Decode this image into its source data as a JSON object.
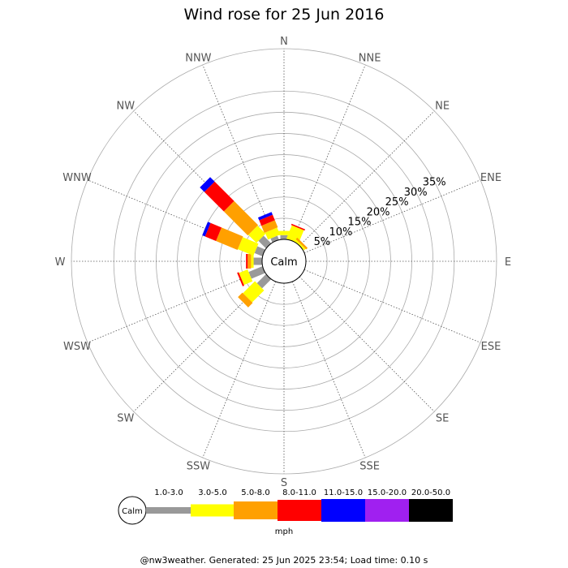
{
  "chart_data": {
    "type": "windrose",
    "title": "Wind rose for 25 Jun 2016",
    "calm_label": "Calm",
    "directions": [
      "N",
      "NNE",
      "NE",
      "ENE",
      "E",
      "ESE",
      "SE",
      "SSE",
      "S",
      "SSW",
      "SW",
      "WSW",
      "W",
      "WNW",
      "NW",
      "NNW"
    ],
    "ring_labels": [
      "5%",
      "10%",
      "15%",
      "20%",
      "25%",
      "30%",
      "35%"
    ],
    "ring_values": [
      5,
      10,
      15,
      20,
      25,
      30,
      35
    ],
    "rmax": 45,
    "unit": "mph",
    "speed_bins": [
      {
        "label": "1.0-3.0",
        "color": "#999999"
      },
      {
        "label": "3.0-5.0",
        "color": "#ffff00"
      },
      {
        "label": "5.0-8.0",
        "color": "#ffa000"
      },
      {
        "label": "8.0-11.0",
        "color": "#ff0000"
      },
      {
        "label": "11.0-15.0",
        "color": "#0000ff"
      },
      {
        "label": "15.0-20.0",
        "color": "#a020f0"
      },
      {
        "label": "20.0-50.0",
        "color": "#000000"
      }
    ],
    "series": [
      {
        "dir": "N",
        "values": [
          1.0,
          1.0,
          0.0,
          0.0,
          0.0,
          0.0,
          0.0
        ]
      },
      {
        "dir": "NNE",
        "values": [
          0.0,
          3.4,
          0.0,
          0.3,
          0.0,
          0.0,
          0.0
        ]
      },
      {
        "dir": "NE",
        "values": [
          0.0,
          0.5,
          0.5,
          0.0,
          0.0,
          0.0,
          0.0
        ]
      },
      {
        "dir": "ENE",
        "values": [
          0.0,
          0.0,
          0.0,
          0.0,
          0.0,
          0.0,
          0.0
        ]
      },
      {
        "dir": "E",
        "values": [
          0.0,
          0.0,
          0.0,
          0.0,
          0.0,
          0.0,
          0.0
        ]
      },
      {
        "dir": "ESE",
        "values": [
          0.0,
          0.0,
          0.0,
          0.0,
          0.0,
          0.0,
          0.0
        ]
      },
      {
        "dir": "SE",
        "values": [
          0.0,
          0.0,
          0.0,
          0.0,
          0.0,
          0.0,
          0.0
        ]
      },
      {
        "dir": "SSE",
        "values": [
          0.0,
          0.0,
          0.0,
          0.0,
          0.0,
          0.0,
          0.0
        ]
      },
      {
        "dir": "S",
        "values": [
          0.0,
          0.0,
          0.0,
          0.0,
          0.0,
          0.0,
          0.0
        ]
      },
      {
        "dir": "SSW",
        "values": [
          0.0,
          0.0,
          0.0,
          0.0,
          0.0,
          0.0,
          0.0
        ]
      },
      {
        "dir": "SW",
        "values": [
          3.0,
          4.0,
          1.5,
          0.0,
          0.0,
          0.0,
          0.0
        ]
      },
      {
        "dir": "WSW",
        "values": [
          3.5,
          2.2,
          0.0,
          0.4,
          0.0,
          0.0,
          0.0
        ]
      },
      {
        "dir": "W",
        "values": [
          2.0,
          0.6,
          0.8,
          0.4,
          0.0,
          0.0,
          0.0
        ]
      },
      {
        "dir": "WNW",
        "values": [
          2.0,
          4.0,
          5.5,
          2.8,
          0.7,
          0.0,
          0.0
        ]
      },
      {
        "dir": "NW",
        "values": [
          2.5,
          2.7,
          8.0,
          6.5,
          1.5,
          0.0,
          0.0
        ]
      },
      {
        "dir": "NNW",
        "values": [
          1.0,
          1.8,
          1.8,
          1.4,
          0.7,
          0.0,
          0.0
        ]
      }
    ]
  },
  "footer": "@nw3weather. Generated: 25 Jun 2025 23:54; Load time: 0.10 s"
}
